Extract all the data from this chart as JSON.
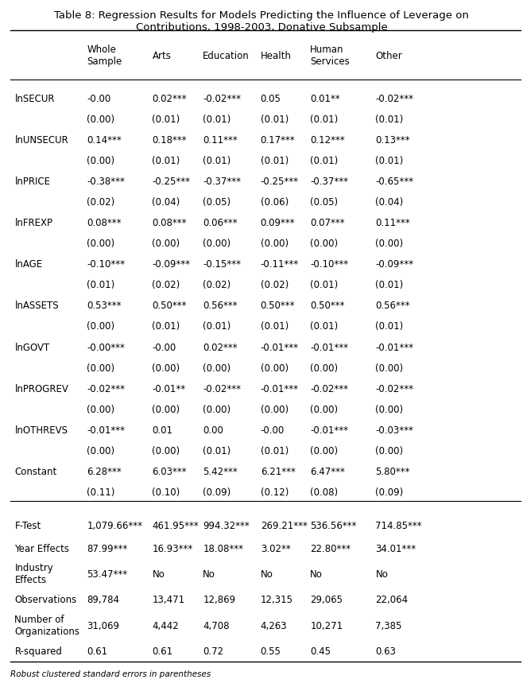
{
  "title": "Table 8: Regression Results for Models Predicting the Influence of Leverage on\nContributions, 1998-2003, Donative Subsample",
  "columns": [
    "",
    "Whole\nSample",
    "Arts",
    "Education",
    "Health",
    "Human\nServices",
    "Other"
  ],
  "rows": [
    [
      "lnSECUR",
      "-0.00",
      "0.02***",
      "-0.02***",
      "0.05",
      "0.01**",
      "-0.02***"
    ],
    [
      "",
      "(0.00)",
      "(0.01)",
      "(0.01)",
      "(0.01)",
      "(0.01)",
      "(0.01)"
    ],
    [
      "lnUNSECUR",
      "0.14***",
      "0.18***",
      "0.11***",
      "0.17***",
      "0.12***",
      "0.13***"
    ],
    [
      "",
      "(0.00)",
      "(0.01)",
      "(0.01)",
      "(0.01)",
      "(0.01)",
      "(0.01)"
    ],
    [
      "lnPRICE",
      "-0.38***",
      "-0.25***",
      "-0.37***",
      "-0.25***",
      "-0.37***",
      "-0.65***"
    ],
    [
      "",
      "(0.02)",
      "(0.04)",
      "(0.05)",
      "(0.06)",
      "(0.05)",
      "(0.04)"
    ],
    [
      "lnFREXP",
      "0.08***",
      "0.08***",
      "0.06***",
      "0.09***",
      "0.07***",
      "0.11***"
    ],
    [
      "",
      "(0.00)",
      "(0.00)",
      "(0.00)",
      "(0.00)",
      "(0.00)",
      "(0.00)"
    ],
    [
      "lnAGE",
      "-0.10***",
      "-0.09***",
      "-0.15***",
      "-0.11***",
      "-0.10***",
      "-0.09***"
    ],
    [
      "",
      "(0.01)",
      "(0.02)",
      "(0.02)",
      "(0.02)",
      "(0.01)",
      "(0.01)"
    ],
    [
      "lnASSETS",
      "0.53***",
      "0.50***",
      "0.56***",
      "0.50***",
      "0.50***",
      "0.56***"
    ],
    [
      "",
      "(0.00)",
      "(0.01)",
      "(0.01)",
      "(0.01)",
      "(0.01)",
      "(0.01)"
    ],
    [
      "lnGOVT",
      "-0.00***",
      "-0.00",
      "0.02***",
      "-0.01***",
      "-0.01***",
      "-0.01***"
    ],
    [
      "",
      "(0.00)",
      "(0.00)",
      "(0.00)",
      "(0.00)",
      "(0.00)",
      "(0.00)"
    ],
    [
      "lnPROGREV",
      "-0.02***",
      "-0.01**",
      "-0.02***",
      "-0.01***",
      "-0.02***",
      "-0.02***"
    ],
    [
      "",
      "(0.00)",
      "(0.00)",
      "(0.00)",
      "(0.00)",
      "(0.00)",
      "(0.00)"
    ],
    [
      "lnOTHREVS",
      "-0.01***",
      "0.01",
      "0.00",
      "-0.00",
      "-0.01***",
      "-0.03***"
    ],
    [
      "",
      "(0.00)",
      "(0.00)",
      "(0.01)",
      "(0.01)",
      "(0.00)",
      "(0.00)"
    ],
    [
      "Constant",
      "6.28***",
      "6.03***",
      "5.42***",
      "6.21***",
      "6.47***",
      "5.80***"
    ],
    [
      "",
      "(0.11)",
      "(0.10)",
      "(0.09)",
      "(0.12)",
      "(0.08)",
      "(0.09)"
    ],
    [
      "F-Test",
      "1,079.66***",
      "461.95***",
      "994.32***",
      "269.21***",
      "536.56***",
      "714.85***"
    ],
    [
      "Year Effects",
      "87.99***",
      "16.93***",
      "18.08***",
      "3.02**",
      "22.80***",
      "34.01***"
    ],
    [
      "Industry\nEffects",
      "53.47***",
      "No",
      "No",
      "No",
      "No",
      "No"
    ],
    [
      "Observations",
      "89,784",
      "13,471",
      "12,869",
      "12,315",
      "29,065",
      "22,064"
    ],
    [
      "Number of\nOrganizations",
      "31,069",
      "4,442",
      "4,708",
      "4,263",
      "10,271",
      "7,385"
    ],
    [
      "R-squared",
      "0.61",
      "0.61",
      "0.72",
      "0.55",
      "0.45",
      "0.63"
    ]
  ],
  "footer": "Robust clustered standard errors in parentheses",
  "background_color": "#ffffff",
  "text_color": "#000000",
  "fontsize": 8.5,
  "title_fontsize": 9.5
}
